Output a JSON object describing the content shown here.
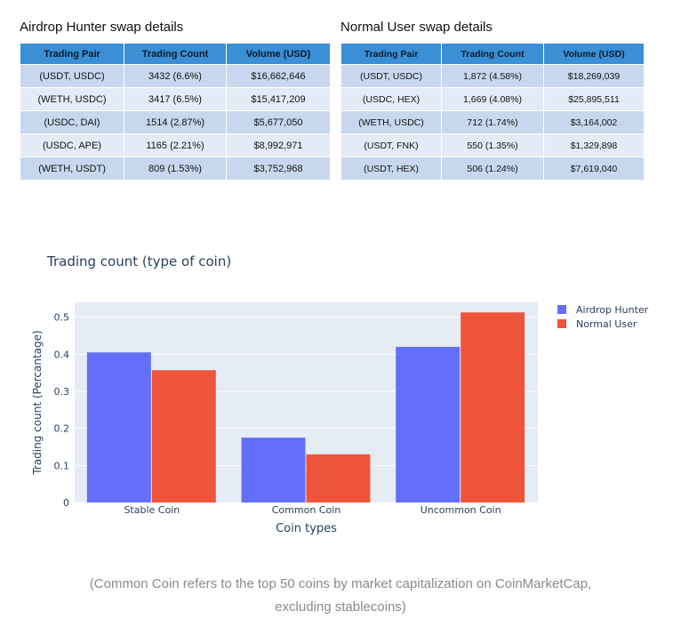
{
  "left_table": {
    "title": "Airdrop Hunter swap details",
    "headers": [
      "Trading Pair",
      "Trading Count",
      "Volume (USD)"
    ],
    "rows": [
      [
        "(USDT, USDC)",
        "3432 (6.6%)",
        "$16,662,646"
      ],
      [
        "(WETH, USDC)",
        "3417 (6.5%)",
        "$15,417,209"
      ],
      [
        "(USDC, DAI)",
        "1514 (2.87%)",
        "$5,677,050"
      ],
      [
        "(USDC, APE)",
        "1165 (2.21%)",
        "$8,992,971"
      ],
      [
        "(WETH, USDT)",
        "809 (1.53%)",
        "$3,752,968"
      ]
    ]
  },
  "right_table": {
    "title": "Normal User swap details",
    "headers": [
      "Trading Pair",
      "Trading Count",
      "Volume (USD)"
    ],
    "rows": [
      [
        "(USDT, USDC)",
        "1,872 (4.58%)",
        "$18,269,039"
      ],
      [
        "(USDC, HEX)",
        "1,669 (4.08%)",
        "$25,895,511"
      ],
      [
        "(WETH, USDC)",
        "712 (1.74%)",
        "$3,164,002"
      ],
      [
        "(USDT, FNK)",
        "550 (1.35%)",
        "$1,329,898"
      ],
      [
        "(USDT, HEX)",
        "506 (1.24%)",
        "$7,619,040"
      ]
    ]
  },
  "chart_data": {
    "type": "bar",
    "title": "Trading count (type of coin)",
    "xlabel": "Coin types",
    "ylabel": "Trading count (Percantage)",
    "categories": [
      "Stable Coin",
      "Common Coin",
      "Uncommon Coin"
    ],
    "series": [
      {
        "name": "Airdrop Hunter",
        "color": "#636efa",
        "values": [
          0.405,
          0.175,
          0.42
        ]
      },
      {
        "name": "Normal User",
        "color": "#ef553b",
        "values": [
          0.357,
          0.13,
          0.513
        ]
      }
    ],
    "ylim": [
      0,
      0.54
    ],
    "yticks": [
      "0",
      "0.1",
      "0.2",
      "0.3",
      "0.4",
      "0.5"
    ],
    "grid": true,
    "legend": "top-right",
    "plot_bg": "#e5ecf6"
  },
  "caption": {
    "line1": "(Common Coin refers to the top 50 coins by market capitalization on CoinMarketCap,",
    "line2": "excluding stablecoins)"
  }
}
